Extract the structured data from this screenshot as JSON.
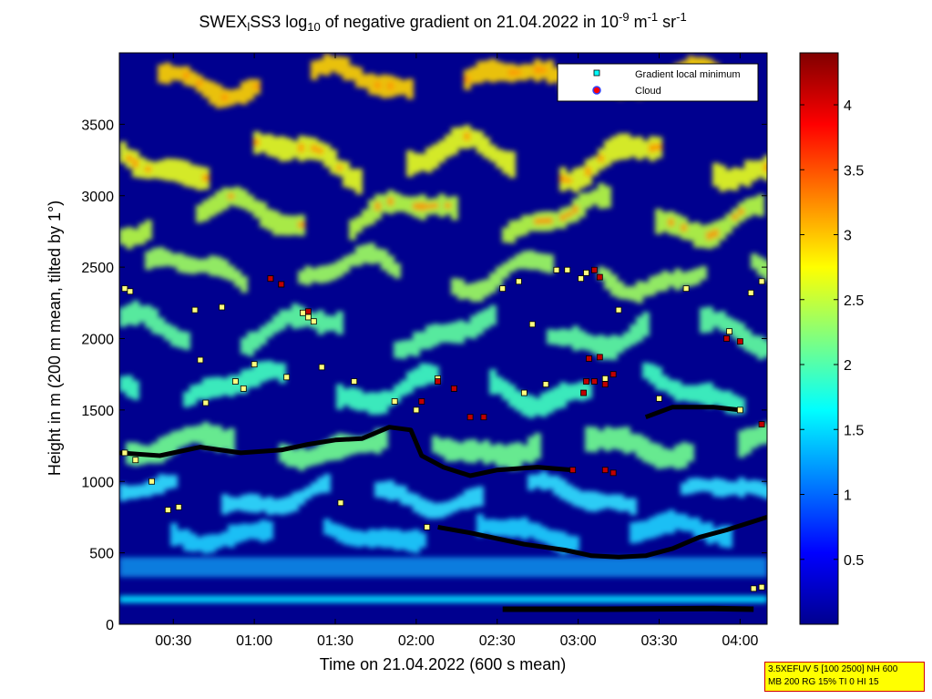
{
  "chart_data": {
    "type": "heatmap",
    "title": {
      "prefix": "SWEX",
      "sub1": "l",
      "middle": "SS3 log",
      "sub2": "10",
      "rest1": " of negative gradient on 21.04.2022 in 10",
      "sup1": "-9",
      "rest2": " m",
      "sup2": "-1",
      "rest3": " sr",
      "sup3": "-1"
    },
    "xlabel": "Time on 21.04.2022 (600 s mean)",
    "ylabel": "Height in m (200 m mean, tilted by 1°)",
    "x_range_min": [
      10,
      250
    ],
    "y_range_m": [
      0,
      4000
    ],
    "x_ticks": [
      {
        "min": 30,
        "label": "00:30"
      },
      {
        "min": 60,
        "label": "01:00"
      },
      {
        "min": 90,
        "label": "01:30"
      },
      {
        "min": 120,
        "label": "02:00"
      },
      {
        "min": 150,
        "label": "02:30"
      },
      {
        "min": 180,
        "label": "03:00"
      },
      {
        "min": 210,
        "label": "03:30"
      },
      {
        "min": 240,
        "label": "04:00"
      }
    ],
    "y_ticks": [
      0,
      500,
      1000,
      1500,
      2000,
      2500,
      3000,
      3500
    ],
    "colorbar": {
      "range": [
        0,
        4.4
      ],
      "ticks": [
        0.5,
        1,
        1.5,
        2,
        2.5,
        3,
        3.5,
        4
      ],
      "colormap": "jet"
    },
    "legend": {
      "position": "top-right",
      "entries": [
        {
          "label": "Gradient local minimum",
          "marker": "square",
          "color": "#00ffff"
        },
        {
          "label": "Cloud",
          "marker": "circle",
          "color": "#ff0000"
        }
      ]
    },
    "layer_lines": [
      {
        "name": "ground-layer",
        "points": [
          [
            152,
            105
          ],
          [
            190,
            105
          ],
          [
            230,
            110
          ],
          [
            245,
            105
          ]
        ]
      },
      {
        "name": "lower-layer",
        "points": [
          [
            128,
            680
          ],
          [
            140,
            640
          ],
          [
            150,
            600
          ],
          [
            160,
            560
          ],
          [
            175,
            520
          ],
          [
            185,
            480
          ],
          [
            195,
            470
          ],
          [
            205,
            480
          ],
          [
            215,
            530
          ],
          [
            225,
            610
          ],
          [
            235,
            660
          ],
          [
            245,
            720
          ],
          [
            250,
            750
          ]
        ]
      },
      {
        "name": "mid-layer",
        "points": [
          [
            10,
            1200
          ],
          [
            25,
            1180
          ],
          [
            40,
            1240
          ],
          [
            55,
            1200
          ],
          [
            70,
            1220
          ],
          [
            80,
            1260
          ],
          [
            90,
            1290
          ],
          [
            100,
            1300
          ],
          [
            110,
            1380
          ],
          [
            118,
            1360
          ],
          [
            122,
            1180
          ],
          [
            130,
            1100
          ],
          [
            140,
            1040
          ],
          [
            150,
            1080
          ],
          [
            165,
            1100
          ],
          [
            178,
            1080
          ]
        ]
      },
      {
        "name": "upper-layer",
        "points": [
          [
            205,
            1450
          ],
          [
            215,
            1520
          ],
          [
            230,
            1520
          ],
          [
            240,
            1500
          ]
        ]
      }
    ],
    "gradient_minima": [
      [
        12,
        2350
      ],
      [
        14,
        2330
      ],
      [
        28,
        800
      ],
      [
        32,
        820
      ],
      [
        38,
        2200
      ],
      [
        40,
        1850
      ],
      [
        42,
        1550
      ],
      [
        48,
        2220
      ],
      [
        53,
        1700
      ],
      [
        56,
        1650
      ],
      [
        60,
        1820
      ],
      [
        66,
        2420
      ],
      [
        70,
        2380
      ],
      [
        72,
        1730
      ],
      [
        78,
        2180
      ],
      [
        80,
        2150
      ],
      [
        82,
        2120
      ],
      [
        85,
        1800
      ],
      [
        92,
        850
      ],
      [
        97,
        1700
      ],
      [
        112,
        1560
      ],
      [
        120,
        1500
      ],
      [
        124,
        680
      ],
      [
        128,
        1720
      ],
      [
        134,
        1650
      ],
      [
        152,
        2350
      ],
      [
        158,
        2400
      ],
      [
        160,
        1620
      ],
      [
        163,
        2100
      ],
      [
        168,
        1680
      ],
      [
        172,
        2480
      ],
      [
        176,
        2480
      ],
      [
        181,
        2420
      ],
      [
        183,
        2460
      ],
      [
        190,
        1720
      ],
      [
        195,
        2200
      ],
      [
        210,
        1580
      ],
      [
        220,
        2350
      ],
      [
        236,
        2050
      ],
      [
        244,
        2320
      ],
      [
        248,
        2400
      ],
      [
        240,
        1500
      ],
      [
        245,
        250
      ],
      [
        248,
        260
      ],
      [
        12,
        1200
      ],
      [
        16,
        1150
      ],
      [
        22,
        1000
      ]
    ],
    "clouds": [
      [
        66,
        2420
      ],
      [
        70,
        2380
      ],
      [
        80,
        2190
      ],
      [
        122,
        1560
      ],
      [
        128,
        1700
      ],
      [
        134,
        1650
      ],
      [
        140,
        1450
      ],
      [
        145,
        1450
      ],
      [
        178,
        1080
      ],
      [
        186,
        1700
      ],
      [
        190,
        1680
      ],
      [
        193,
        1750
      ],
      [
        184,
        1860
      ],
      [
        188,
        1870
      ],
      [
        182,
        1620
      ],
      [
        183,
        1700
      ],
      [
        190,
        1080
      ],
      [
        193,
        1060
      ],
      [
        186,
        2480
      ],
      [
        188,
        2430
      ],
      [
        235,
        2000
      ],
      [
        240,
        1980
      ],
      [
        248,
        1400
      ]
    ]
  },
  "info_box": {
    "line1": "3.5XEFUV 5 [100 2500] NH 600",
    "line2": "MB 200 RG 15% TI 0 HI 15"
  }
}
